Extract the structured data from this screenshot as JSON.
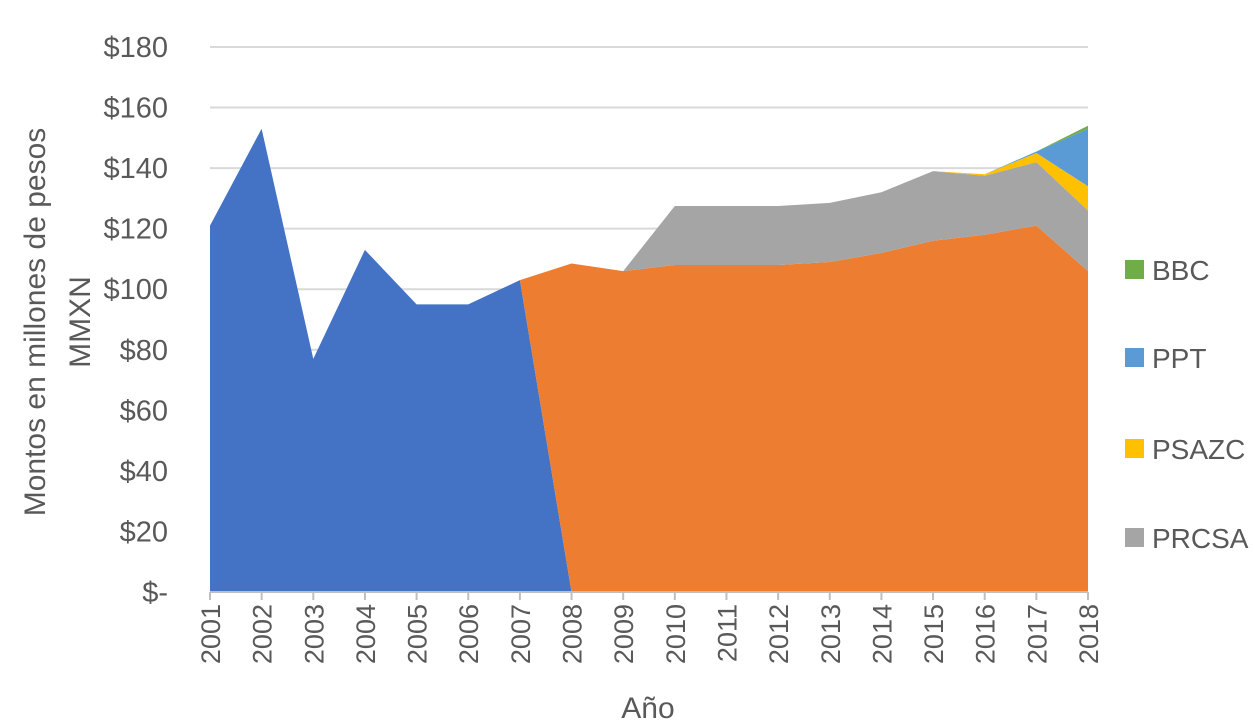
{
  "chart_data": {
    "type": "area",
    "stacked": true,
    "title": "",
    "xlabel": "Año",
    "ylabel": "Montos en millones de pesos MMXN",
    "ylabel_lines": [
      "Montos en millones de pesos",
      "MMXN"
    ],
    "ylim": [
      0,
      180
    ],
    "ytick_values": [
      0,
      20,
      40,
      60,
      80,
      100,
      120,
      140,
      160,
      180
    ],
    "ytick_labels": [
      "$-",
      "$20",
      "$40",
      "$60",
      "$80",
      "$100",
      "$120",
      "$140",
      "$160",
      "$180"
    ],
    "grid": true,
    "legend_position": "right",
    "x": [
      "2001",
      "2002",
      "2003",
      "2004",
      "2005",
      "2006",
      "2007",
      "2008",
      "2009",
      "2010",
      "2011",
      "2012",
      "2013",
      "2014",
      "2015",
      "2016",
      "2017",
      "2018"
    ],
    "series": [
      {
        "name": "",
        "color": "#4472C4",
        "values": [
          121,
          153,
          77,
          113,
          95,
          95,
          103,
          0,
          0,
          0,
          0,
          0,
          0,
          0,
          0,
          0,
          0,
          0
        ]
      },
      {
        "name": "",
        "color": "#ED7D31",
        "values": [
          0,
          0,
          0,
          0,
          0,
          0,
          0,
          108.5,
          106,
          108,
          108,
          108,
          109,
          112,
          116,
          118,
          121,
          106
        ]
      },
      {
        "name": "PRCSA",
        "color": "#A5A5A5",
        "values": [
          0,
          0,
          0,
          0,
          0,
          0,
          0,
          0,
          0,
          19.5,
          19.5,
          19.5,
          19.5,
          20,
          23,
          19.5,
          21,
          20
        ]
      },
      {
        "name": "PSAZC",
        "color": "#FFC000",
        "values": [
          0,
          0,
          0,
          0,
          0,
          0,
          0,
          0,
          0,
          0,
          0,
          0,
          0,
          0,
          0,
          0.5,
          3,
          8
        ]
      },
      {
        "name": "PPT",
        "color": "#5B9BD5",
        "values": [
          0,
          0,
          0,
          0,
          0,
          0,
          0,
          0,
          0,
          0,
          0,
          0,
          0,
          0,
          0,
          0,
          0.5,
          19
        ]
      },
      {
        "name": "BBC",
        "color": "#70AD47",
        "values": [
          0,
          0,
          0,
          0,
          0,
          0,
          0,
          0,
          0,
          0,
          0,
          0,
          0,
          0,
          0,
          0,
          0,
          1
        ]
      }
    ],
    "legend_order": [
      "BBC",
      "PPT",
      "PSAZC",
      "PRCSA"
    ]
  }
}
